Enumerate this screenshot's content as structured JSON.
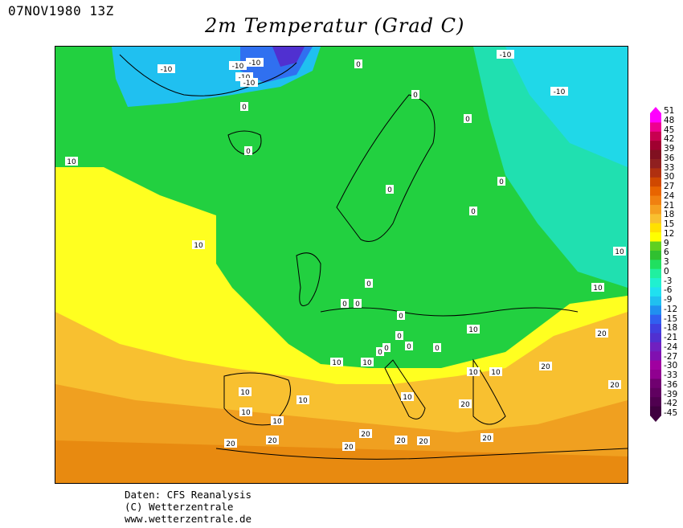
{
  "header": {
    "date_label": "07NOV1980 13Z",
    "title": "2m Temperatur (Grad C)"
  },
  "credits": {
    "line1": "Daten: CFS Reanalysis",
    "line2": "(C) Wetterzentrale",
    "line3": "www.wetterzentrale.de"
  },
  "colorbar": {
    "labels": [
      "51",
      "48",
      "45",
      "42",
      "39",
      "36",
      "33",
      "30",
      "27",
      "24",
      "21",
      "18",
      "15",
      "12",
      "9",
      "6",
      "3",
      "0",
      "-3",
      "-6",
      "-9",
      "-12",
      "-15",
      "-18",
      "-21",
      "-24",
      "-27",
      "-30",
      "-33",
      "-36",
      "-39",
      "-42",
      "-45"
    ],
    "colors": [
      "#ff00ff",
      "#ee0090",
      "#c80050",
      "#a00030",
      "#801020",
      "#902020",
      "#b03010",
      "#d04800",
      "#e86400",
      "#f08010",
      "#f5a020",
      "#f8c030",
      "#ffe000",
      "#ffff00",
      "#60d020",
      "#30c030",
      "#20e060",
      "#20f0a0",
      "#20f0d0",
      "#20e0f0",
      "#20c0f0",
      "#2090f0",
      "#3060f0",
      "#4040e0",
      "#5030d0",
      "#7020c0",
      "#8010b0",
      "#a000a0",
      "#900090",
      "#700070",
      "#600060",
      "#500050",
      "#400040"
    ],
    "colors_note": "top to bottom"
  },
  "map": {
    "region": "Europe",
    "contour_labels": [
      "-10",
      "-10",
      "-10",
      "-10",
      "-10",
      "-10",
      "-10",
      "0",
      "0",
      "0",
      "0",
      "0",
      "0",
      "0",
      "0",
      "0",
      "0",
      "0",
      "0",
      "0",
      "0",
      "0",
      "0",
      "0",
      "10",
      "10",
      "10",
      "10",
      "10",
      "10",
      "10",
      "10",
      "10",
      "10",
      "10",
      "10",
      "10",
      "10",
      "20",
      "20",
      "20",
      "20",
      "20",
      "20",
      "20",
      "20",
      "20",
      "20",
      "20"
    ]
  }
}
